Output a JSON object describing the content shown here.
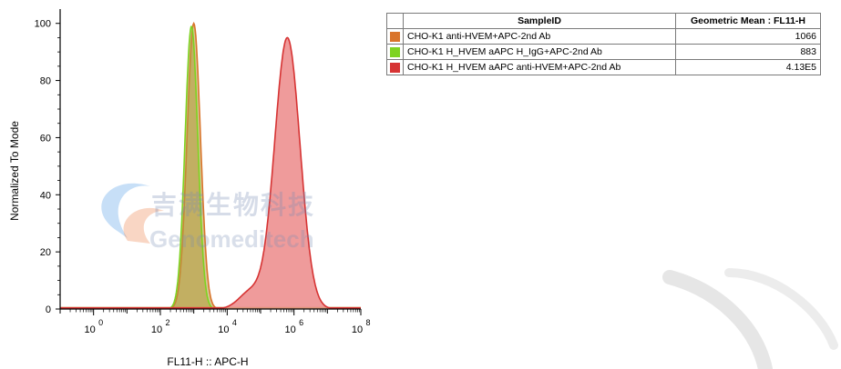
{
  "colors": {
    "orange": "#d9742b",
    "green": "#7ed321",
    "red": "#d63333",
    "red_fill": "#ec8a8a",
    "olive_fill": "#b39a3a"
  },
  "chart_data": {
    "type": "area",
    "ylabel": "Normalized To Mode",
    "xlabel": "FL11-H :: APC-H",
    "x_scale": "log",
    "xlim": [
      "10^-1",
      "10^8"
    ],
    "ylim": [
      0,
      100
    ],
    "y_ticks": [
      "0",
      "20",
      "40",
      "60",
      "80",
      "100"
    ],
    "x_ticks": [
      {
        "base": "10",
        "exp": "0"
      },
      {
        "base": "10",
        "exp": "2"
      },
      {
        "base": "10",
        "exp": "4"
      },
      {
        "base": "10",
        "exp": "6"
      },
      {
        "base": "10",
        "exp": "8"
      }
    ],
    "series": [
      {
        "name": "CHO-K1 anti-HVEM+APC-2nd Ab",
        "color": "orange",
        "peak_log10": 3.0,
        "peak": 100
      },
      {
        "name": "CHO-K1 H_HVEM aAPC H_IgG+APC-2nd Ab",
        "color": "green",
        "peak_log10": 2.93,
        "peak": 99
      },
      {
        "name": "CHO-K1 H_HVEM aAPC anti-HVEM+APC-2nd Ab",
        "color": "red",
        "peak_log10": 5.8,
        "peak": 95
      }
    ]
  },
  "table": {
    "headers": [
      "SampleID",
      "Geometric Mean : FL11-H"
    ],
    "rows": [
      {
        "color": "orange",
        "sample": "CHO-K1 anti-HVEM+APC-2nd Ab",
        "value": "1066"
      },
      {
        "color": "green",
        "sample": "CHO-K1 H_HVEM aAPC H_IgG+APC-2nd Ab",
        "value": "883"
      },
      {
        "color": "red",
        "sample": "CHO-K1 H_HVEM aAPC anti-HVEM+APC-2nd Ab",
        "value": "4.13E5"
      }
    ]
  },
  "watermark": {
    "cn": "吉满生物科技",
    "en": "Genomeditech"
  }
}
